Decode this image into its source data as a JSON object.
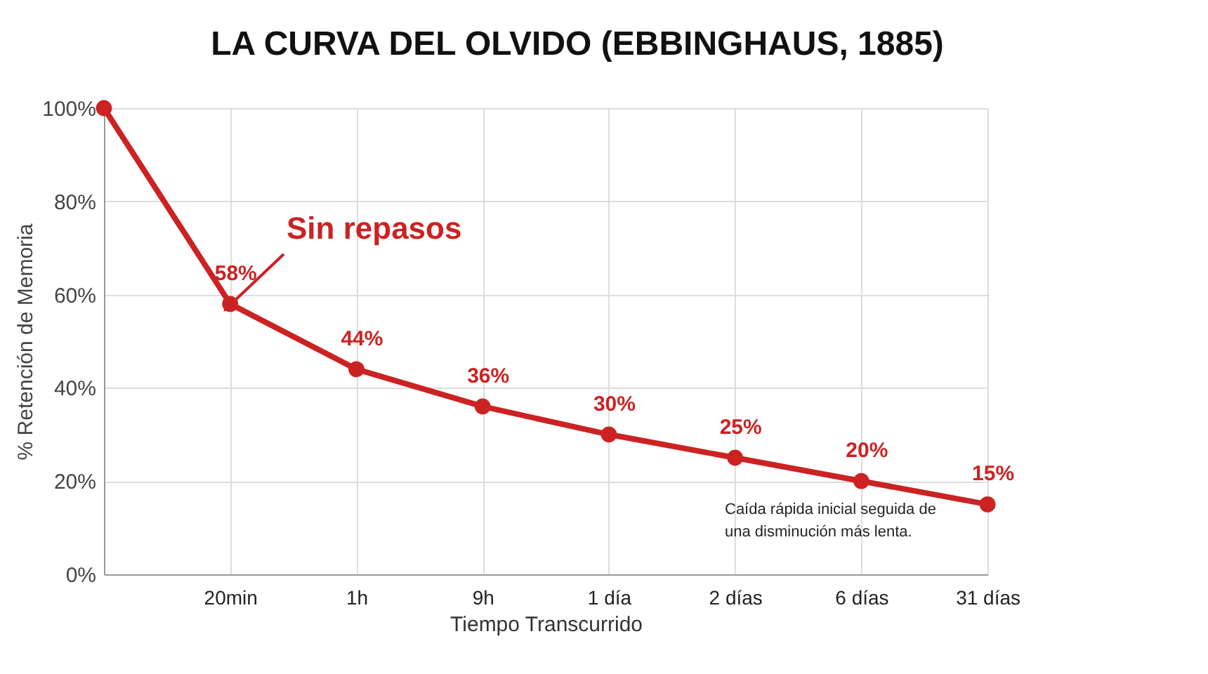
{
  "chart_data": {
    "type": "line",
    "title": "LA CURVA DEL OLVIDO (EBBINGHAUS, 1885)",
    "xlabel": "Tiempo Transcurrido",
    "ylabel": "% Retención de Memoria",
    "categories": [
      null,
      "20min",
      "1h",
      "9h",
      "1 día",
      "2 días",
      "6 días",
      "31 días"
    ],
    "series": [
      {
        "name": "Sin repasos",
        "color": "#cc2222",
        "values": [
          100,
          58,
          44,
          36,
          30,
          25,
          20,
          15
        ],
        "value_labels": [
          null,
          "58%",
          "44%",
          "36%",
          "30%",
          "25%",
          "20%",
          "15%"
        ]
      }
    ],
    "ylim": [
      0,
      100
    ],
    "yticks": [
      {
        "value": 0,
        "label": "0%"
      },
      {
        "value": 20,
        "label": "20%"
      },
      {
        "value": 40,
        "label": "40%"
      },
      {
        "value": 60,
        "label": "60%"
      },
      {
        "value": 80,
        "label": "80%"
      },
      {
        "value": 100,
        "label": "100%"
      }
    ],
    "grid": true,
    "marker": "circle",
    "line_style": "solid",
    "legend": false,
    "annotations": [
      "Caída rápida inicial seguida de una disminución más lenta."
    ]
  }
}
